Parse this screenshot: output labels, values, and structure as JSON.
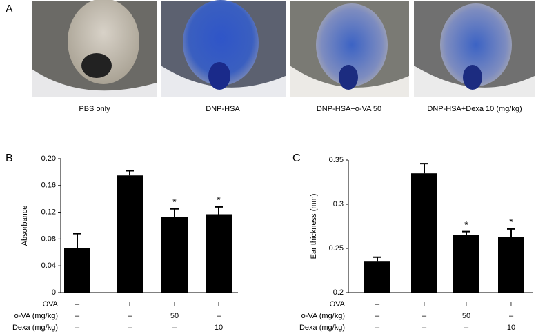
{
  "panel_a": {
    "label": "A",
    "captions": [
      "PBS only",
      "DNP-HSA",
      "DNP-HSA+o-VA 50",
      "DNP-HSA+Dexa 10 (mg/kg)"
    ]
  },
  "chart_data": [
    {
      "type": "bar",
      "label": "B",
      "y_label": "Absorbance",
      "color": "#000000",
      "values": [
        0.066,
        0.175,
        0.113,
        0.117
      ],
      "errors": [
        0.022,
        0.007,
        0.012,
        0.011
      ],
      "significance": [
        null,
        null,
        "*",
        "*"
      ],
      "ylim": [
        0,
        0.2
      ],
      "yticks": [
        0,
        0.04,
        0.08,
        0.12,
        0.16,
        {
          "value": 0.2,
          "label": "0.20"
        }
      ],
      "treatments": [
        {
          "label": "OVA",
          "values": [
            "–",
            "+",
            "+",
            "+"
          ]
        },
        {
          "label": "o-VA (mg/kg)",
          "values": [
            "–",
            "–",
            "50",
            "–"
          ]
        },
        {
          "label": "Dexa (mg/kg)",
          "values": [
            "–",
            "–",
            "–",
            "10"
          ]
        }
      ]
    },
    {
      "type": "bar",
      "label": "C",
      "y_label": "Ear thickness (mm)",
      "color": "#000000",
      "values": [
        0.235,
        0.335,
        0.265,
        0.263
      ],
      "errors": [
        0.005,
        0.011,
        0.004,
        0.009
      ],
      "significance": [
        null,
        null,
        "*",
        "*"
      ],
      "ylim": [
        0.2,
        0.35
      ],
      "yticks": [
        0.2,
        0.25,
        0.3,
        0.35
      ],
      "treatments": [
        {
          "label": "OVA",
          "values": [
            "–",
            "+",
            "+",
            "+"
          ]
        },
        {
          "label": "o-VA (mg/kg)",
          "values": [
            "–",
            "–",
            "50",
            "–"
          ]
        },
        {
          "label": "Dexa (mg/kg)",
          "values": [
            "–",
            "–",
            "–",
            "10"
          ]
        }
      ]
    }
  ]
}
